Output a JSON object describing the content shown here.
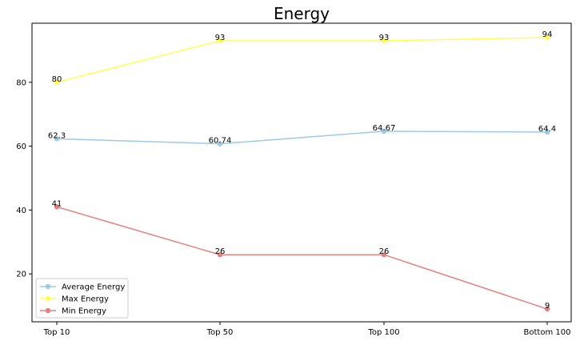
{
  "chart_data": {
    "type": "line",
    "title": "Energy",
    "xlabel": "",
    "ylabel": "",
    "categories": [
      "Top 10",
      "Top 50",
      "Top 100",
      "Bottom 100"
    ],
    "ylim": [
      5,
      98.5
    ],
    "yticks": [
      20,
      40,
      60,
      80
    ],
    "grid": false,
    "legend_position": "lower-left",
    "series": [
      {
        "name": "Average Energy",
        "values": [
          62.3,
          60.74,
          64.67,
          64.4
        ],
        "labels": [
          "62.3",
          "60.74",
          "64.67",
          "64.4"
        ],
        "color": "#9ecae1"
      },
      {
        "name": "Max Energy",
        "values": [
          80,
          93,
          93,
          94
        ],
        "labels": [
          "80",
          "93",
          "93",
          "94"
        ],
        "color": "#ffff55"
      },
      {
        "name": "Min Energy",
        "values": [
          41,
          26,
          26,
          9
        ],
        "labels": [
          "41",
          "26",
          "26",
          "9"
        ],
        "color": "#e6807f"
      }
    ]
  }
}
